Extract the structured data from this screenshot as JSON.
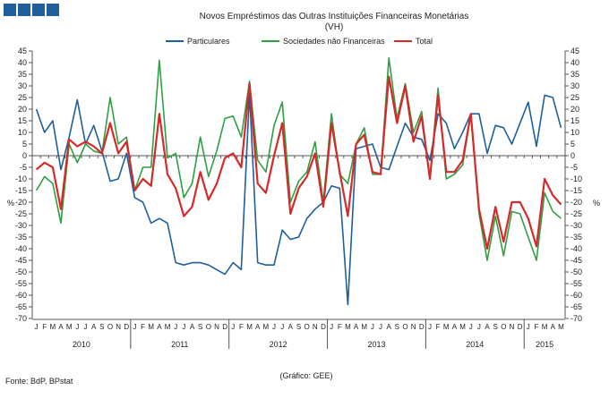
{
  "chart_data": {
    "type": "line",
    "title": "Novos Empréstimos das Outras Instituições Financeiras Monetárias",
    "subtitle": "(VH)",
    "ylabel_left": "%",
    "ylabel_right": "%",
    "ylim": [
      -70,
      45
    ],
    "ytick_step": 5,
    "grid": false,
    "legend_position": "top",
    "month_letters": [
      "J",
      "F",
      "M",
      "A",
      "M",
      "J",
      "J",
      "A",
      "S",
      "O",
      "N",
      "D"
    ],
    "years": [
      "2010",
      "2011",
      "2012",
      "2013",
      "2014",
      "2015"
    ],
    "last_year_months": 5,
    "series": [
      {
        "name": "Particulares",
        "color": "#1F5F9E",
        "values": [
          20,
          10,
          15,
          -6,
          8,
          24,
          5,
          13,
          2,
          -11,
          -10,
          1,
          -18,
          -20,
          -29,
          -27,
          -29,
          -46,
          -47,
          -46,
          -46,
          -47,
          -49,
          -51,
          -46,
          -49,
          27,
          -46,
          -47,
          -47,
          -32,
          -36,
          -35,
          -27,
          -23,
          -20,
          -13,
          -14,
          -64,
          3,
          4,
          5,
          -5,
          -6,
          4,
          14,
          8,
          7,
          -2,
          18,
          14,
          3,
          10,
          18,
          18,
          1,
          13,
          12,
          5,
          14,
          23,
          4,
          26,
          25,
          12
        ]
      },
      {
        "name": "Sociedades não Financeiras",
        "color": "#2EA043",
        "values": [
          -15,
          -9,
          -12,
          -29,
          5,
          -3,
          5,
          2,
          1,
          25,
          5,
          8,
          -15,
          -5,
          -5,
          41,
          -1,
          1,
          -18,
          -12,
          8,
          -9,
          2,
          16,
          17,
          8,
          32,
          -2,
          -7,
          13,
          23,
          -20,
          -11,
          -7,
          6,
          -20,
          18,
          -8,
          -12,
          5,
          12,
          -8,
          -8,
          42,
          16,
          31,
          10,
          19,
          -10,
          29,
          -10,
          -8,
          -4,
          18,
          -25,
          -45,
          -26,
          -43,
          -24,
          -25,
          -35,
          -45,
          -16,
          -24,
          -27
        ]
      },
      {
        "name": "Total",
        "color": "#D62A2A",
        "values": [
          -6,
          -3,
          -5,
          -23,
          7,
          4,
          6,
          4,
          1,
          14,
          1,
          6,
          -15,
          -10,
          -13,
          18,
          -8,
          -14,
          -26,
          -22,
          -7,
          -19,
          -12,
          -1,
          1,
          -5,
          31,
          -12,
          -16,
          0,
          14,
          -25,
          -14,
          -9,
          1,
          -22,
          14,
          -7,
          -26,
          5,
          9,
          -7,
          -8,
          34,
          14,
          30,
          6,
          17,
          -10,
          26,
          -7,
          -7,
          -2,
          18,
          -23,
          -40,
          -22,
          -37,
          -20,
          -20,
          -27,
          -39,
          -10,
          -17,
          -21
        ]
      }
    ]
  },
  "footer": {
    "source": "Fonte: BdP, BPstat",
    "credit": "(Gráfico: GEE)"
  }
}
